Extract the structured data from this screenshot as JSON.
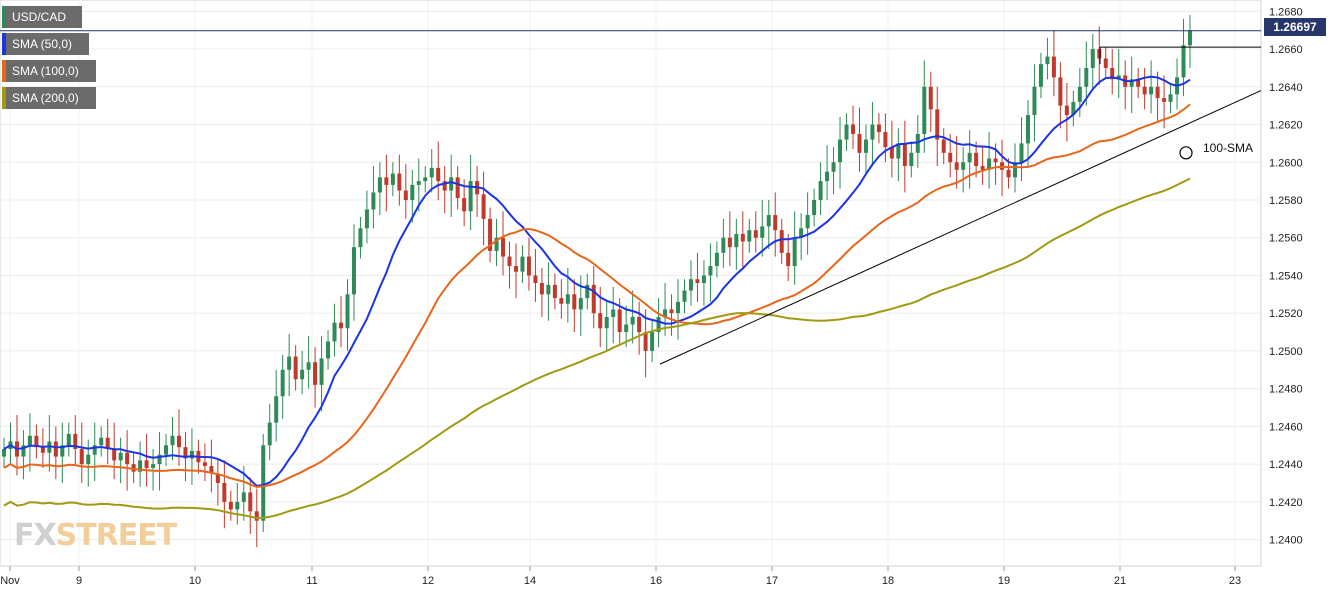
{
  "chart_data": {
    "type": "candlestick",
    "symbol": "USD/CAD",
    "last_price": "1.26697",
    "y_ticks": [
      "1.2400",
      "1.2420",
      "1.2440",
      "1.2460",
      "1.2480",
      "1.2500",
      "1.2520",
      "1.2540",
      "1.2560",
      "1.2580",
      "1.2600",
      "1.2620",
      "1.2640",
      "1.2660",
      "1.2680"
    ],
    "ylim": [
      1.2386,
      1.2686
    ],
    "x_ticks": [
      "Nov",
      "9",
      "10",
      "11",
      "12",
      "14",
      "16",
      "17",
      "18",
      "19",
      "21",
      "23"
    ],
    "grid": true,
    "legend": [
      "SMA (50,0)",
      "SMA (100,0)",
      "SMA (200,0)"
    ],
    "annotations": [
      "100-SMA"
    ],
    "colors": {
      "up": "#2e8b57",
      "down": "#c0392b",
      "sma50": "#1a34e6",
      "sma100": "#e8661a",
      "sma200": "#a09a12",
      "price_line": "#25376b"
    },
    "closes": [
      1.2448,
      1.2452,
      1.2444,
      1.245,
      1.2455,
      1.2449,
      1.2446,
      1.2452,
      1.2444,
      1.245,
      1.2456,
      1.2448,
      1.244,
      1.2445,
      1.245,
      1.2454,
      1.2448,
      1.2442,
      1.2446,
      1.244,
      1.2436,
      1.2442,
      1.2438,
      1.244,
      1.2445,
      1.245,
      1.2455,
      1.2449,
      1.2443,
      1.2447,
      1.2441,
      1.2439,
      1.2435,
      1.243,
      1.242,
      1.2416,
      1.242,
      1.2425,
      1.2415,
      1.241,
      1.245,
      1.2462,
      1.2476,
      1.249,
      1.2497,
      1.2485,
      1.249,
      1.2494,
      1.2482,
      1.2496,
      1.2505,
      1.2515,
      1.2512,
      1.253,
      1.2555,
      1.2565,
      1.2575,
      1.2584,
      1.2592,
      1.2588,
      1.2594,
      1.2585,
      1.258,
      1.2588,
      1.259,
      1.2592,
      1.2597,
      1.259,
      1.2585,
      1.2592,
      1.2581,
      1.2574,
      1.259,
      1.2583,
      1.257,
      1.2553,
      1.256,
      1.255,
      1.2545,
      1.2542,
      1.255,
      1.254,
      1.2536,
      1.253,
      1.2535,
      1.2528,
      1.2525,
      1.253,
      1.2522,
      1.2528,
      1.2535,
      1.252,
      1.2512,
      1.2518,
      1.2522,
      1.251,
      1.2514,
      1.2518,
      1.251,
      1.25,
      1.251,
      1.2518,
      1.2522,
      1.252,
      1.2526,
      1.2532,
      1.2538,
      1.2536,
      1.254,
      1.2545,
      1.2552,
      1.256,
      1.2555,
      1.2562,
      1.2558,
      1.2564,
      1.256,
      1.2566,
      1.2572,
      1.2564,
      1.2552,
      1.2545,
      1.256,
      1.2565,
      1.2572,
      1.258,
      1.259,
      1.2595,
      1.26,
      1.2612,
      1.262,
      1.2615,
      1.2605,
      1.2612,
      1.262,
      1.2616,
      1.2608,
      1.2602,
      1.261,
      1.2598,
      1.2605,
      1.2615,
      1.264,
      1.2628,
      1.2612,
      1.2605,
      1.26,
      1.2596,
      1.26,
      1.2605,
      1.2598,
      1.2596,
      1.2602,
      1.26,
      1.2596,
      1.2592,
      1.26,
      1.261,
      1.2625,
      1.264,
      1.2652,
      1.2656,
      1.2645,
      1.263,
      1.2625,
      1.2632,
      1.264,
      1.265,
      1.266,
      1.2655,
      1.265,
      1.2644,
      1.2646,
      1.264,
      1.2644,
      1.264,
      1.2636,
      1.264,
      1.2634,
      1.2632,
      1.2636,
      1.2645,
      1.2662,
      1.267
    ]
  }
}
